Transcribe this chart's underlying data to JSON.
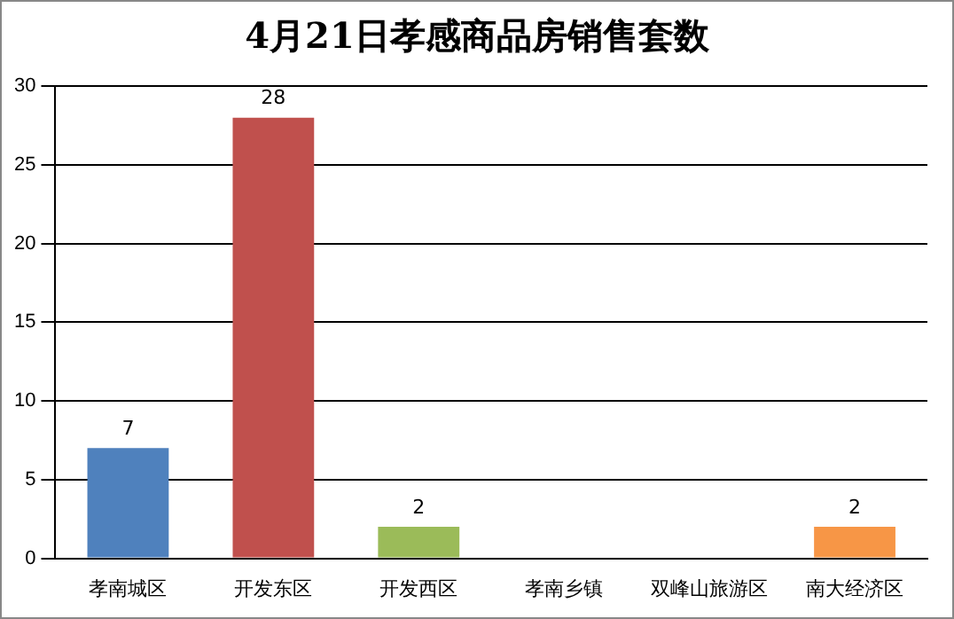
{
  "chart_data": {
    "type": "bar",
    "title": "4月21日孝感商品房销售套数",
    "categories": [
      "孝南城区",
      "开发东区",
      "开发西区",
      "孝南乡镇",
      "双峰山旅游区",
      "南大经济区"
    ],
    "values": [
      7,
      28,
      2,
      0,
      0,
      2
    ],
    "colors": [
      "#4f81bd",
      "#c0504d",
      "#9bbb59",
      "#8064a2",
      "#4bacc6",
      "#f79646"
    ],
    "value_labels": [
      "7",
      "28",
      "2",
      null,
      null,
      "2"
    ],
    "ylim": [
      0,
      30
    ],
    "yticks": [
      0,
      5,
      10,
      15,
      20,
      25,
      30
    ],
    "grid": "y",
    "legend": false
  }
}
